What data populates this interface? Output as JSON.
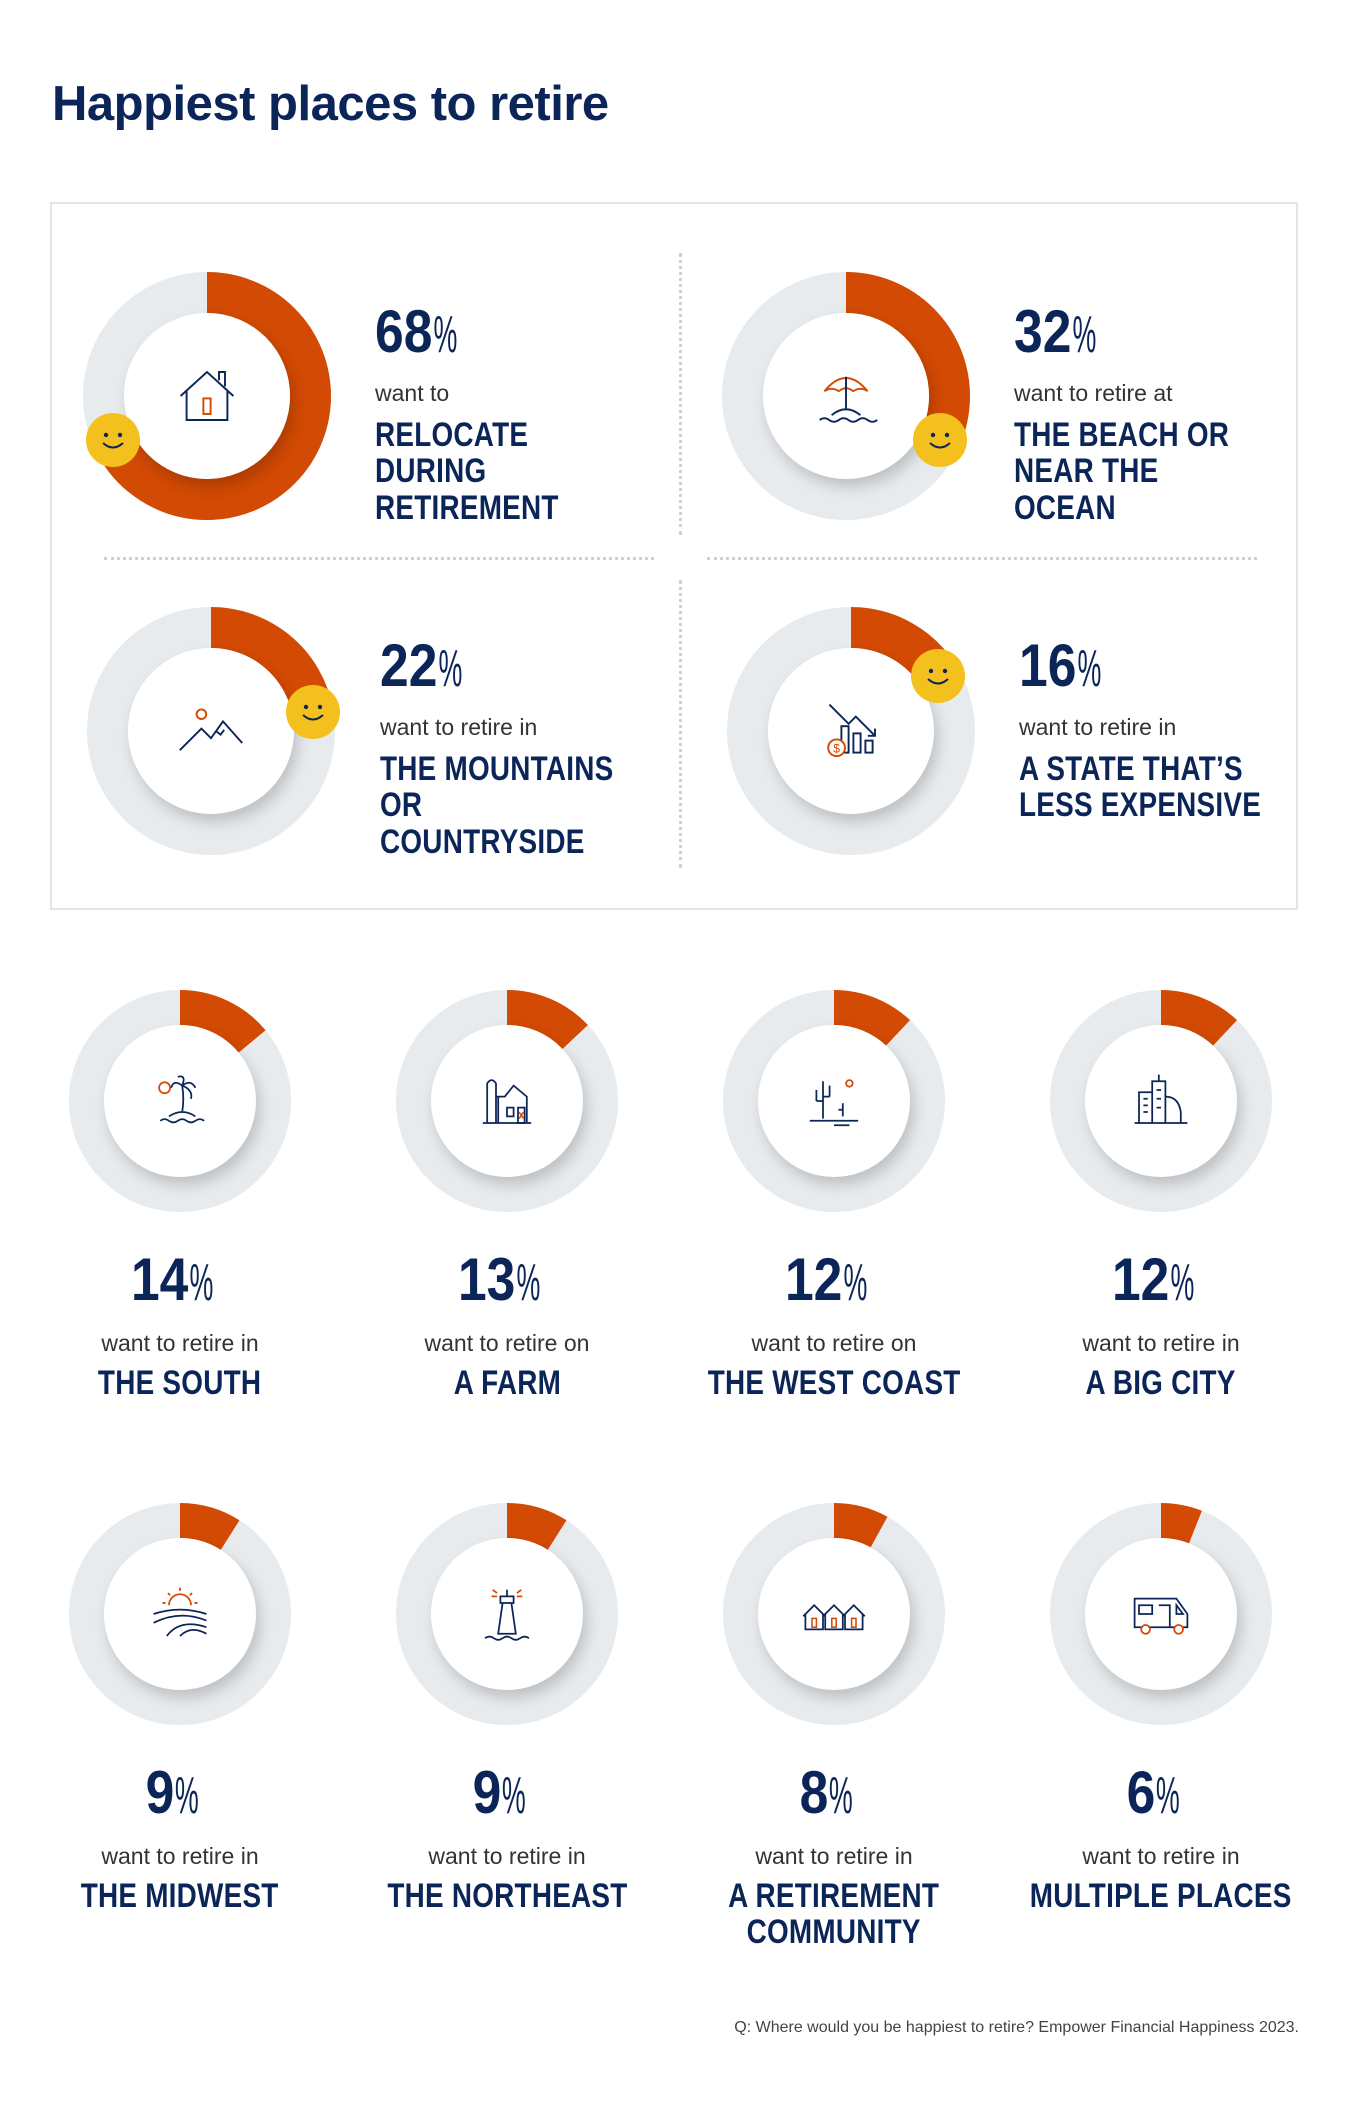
{
  "title": "Happiest places to retire",
  "colors": {
    "accent": "#d24a03",
    "track": "#e7ebee",
    "navy": "#0b2559",
    "smiley": "#f4c01e"
  },
  "footnote": "Q: Where would you be happiest to retire? Empower Financial Happiness 2023.",
  "chart_data": {
    "type": "pie",
    "variant": "donut",
    "unit": "%",
    "categories": [
      "RELOCATE DURING RETIREMENT",
      "THE BEACH OR NEAR THE OCEAN",
      "THE MOUNTAINS OR COUNTRYSIDE",
      "A STATE THAT'S LESS EXPENSIVE",
      "THE SOUTH",
      "A FARM",
      "THE WEST COAST",
      "A BIG CITY",
      "THE MIDWEST",
      "THE NORTHEAST",
      "A RETIREMENT COMMUNITY",
      "MULTIPLE PLACES"
    ],
    "values": [
      68,
      32,
      22,
      16,
      14,
      13,
      12,
      12,
      9,
      9,
      8,
      6
    ],
    "items": [
      {
        "value": 68,
        "pct": "68",
        "sign": "%",
        "lead": "want to",
        "label": "RELOCATE DURING\nRETIREMENT",
        "icon": "house-icon",
        "featured": true
      },
      {
        "value": 32,
        "pct": "32",
        "sign": "%",
        "lead": "want to retire at",
        "label": "THE  BEACH OR\nNEAR THE OCEAN",
        "icon": "beach-umbrella-icon",
        "featured": true
      },
      {
        "value": 22,
        "pct": "22",
        "sign": "%",
        "lead": "want to retire in",
        "label": "THE MOUNTAINS\nOR COUNTRYSIDE",
        "icon": "mountains-icon",
        "featured": true
      },
      {
        "value": 16,
        "pct": "16",
        "sign": "%",
        "lead": "want to retire in",
        "label": "A STATE THAT’S\nLESS EXPENSIVE",
        "icon": "cost-down-chart-icon",
        "featured": true
      },
      {
        "value": 14,
        "pct": "14",
        "sign": "%",
        "lead": "want to retire in",
        "label": "THE SOUTH",
        "icon": "palm-island-icon"
      },
      {
        "value": 13,
        "pct": "13",
        "sign": "%",
        "lead": "want to retire on",
        "label": "A FARM",
        "icon": "barn-icon"
      },
      {
        "value": 12,
        "pct": "12",
        "sign": "%",
        "lead": "want to retire on",
        "label": "THE WEST COAST",
        "icon": "cactus-desert-icon"
      },
      {
        "value": 12,
        "pct": "12",
        "sign": "%",
        "lead": "want to retire in",
        "label": "A BIG CITY",
        "icon": "city-buildings-icon"
      },
      {
        "value": 9,
        "pct": "9",
        "sign": "%",
        "lead": "want to retire in",
        "label": "THE MIDWEST",
        "icon": "sunrise-fields-icon"
      },
      {
        "value": 9,
        "pct": "9",
        "sign": "%",
        "lead": "want to retire in",
        "label": "THE NORTHEAST",
        "icon": "lighthouse-icon"
      },
      {
        "value": 8,
        "pct": "8",
        "sign": "%",
        "lead": "want to retire in",
        "label": "A RETIREMENT\nCOMMUNITY",
        "icon": "houses-row-icon"
      },
      {
        "value": 6,
        "pct": "6",
        "sign": "%",
        "lead": "want to retire in",
        "label": "MULTIPLE PLACES",
        "icon": "rv-camper-icon"
      }
    ]
  }
}
